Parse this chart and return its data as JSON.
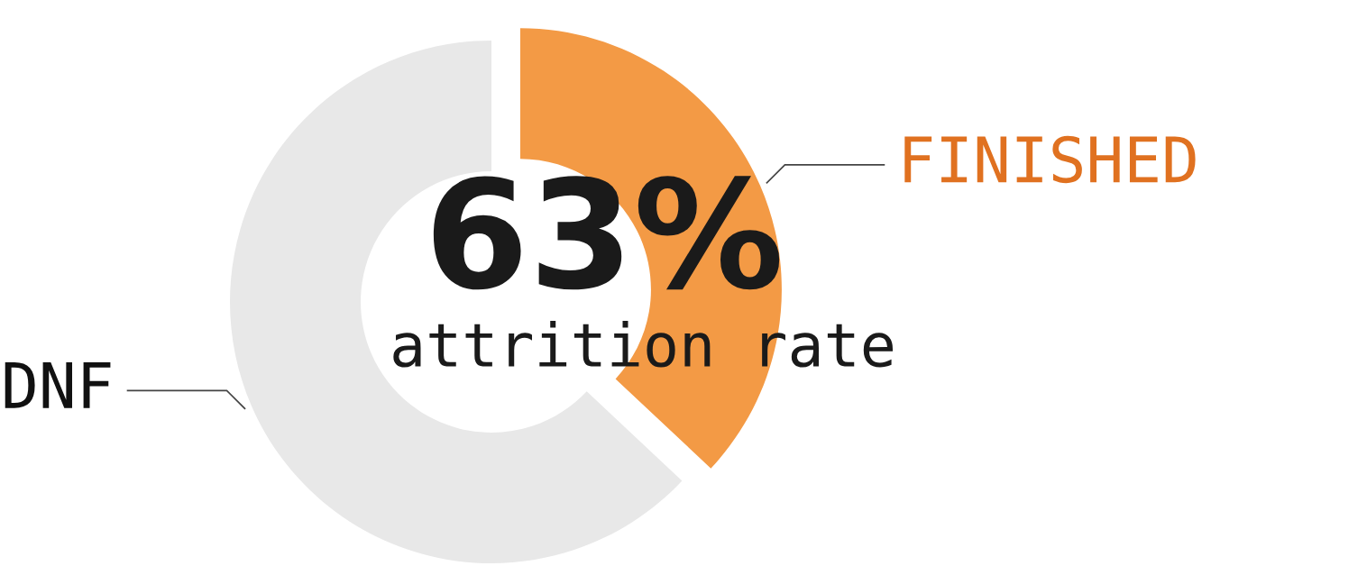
{
  "chart_data": {
    "type": "donut",
    "categories": [
      "FINISHED",
      "DNF"
    ],
    "values": [
      37,
      63
    ],
    "colors": [
      "#f39a45",
      "#e8e8e8"
    ],
    "annotations": [
      "63%",
      "attrition rate"
    ],
    "legend": false
  }
}
